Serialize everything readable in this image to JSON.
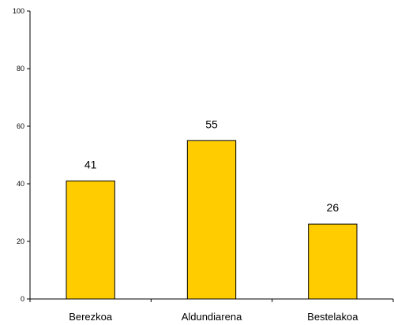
{
  "chart_data": {
    "type": "bar",
    "categories": [
      "Berezkoa",
      "Aldundiarena",
      "Bestelakoa"
    ],
    "values": [
      41,
      55,
      26
    ],
    "data_labels": [
      "41",
      "55",
      "26"
    ],
    "title": "",
    "xlabel": "",
    "ylabel": "",
    "ylim": [
      0,
      100
    ],
    "yticks": [
      0,
      20,
      40,
      60,
      80,
      100
    ],
    "ytick_labels": [
      "0",
      "20",
      "40",
      "60",
      "80",
      "100"
    ],
    "grid": false,
    "legend": "none",
    "colors": {
      "bar_fill": "#FFCC00",
      "bar_stroke": "#000000",
      "axis": "#000000"
    }
  }
}
